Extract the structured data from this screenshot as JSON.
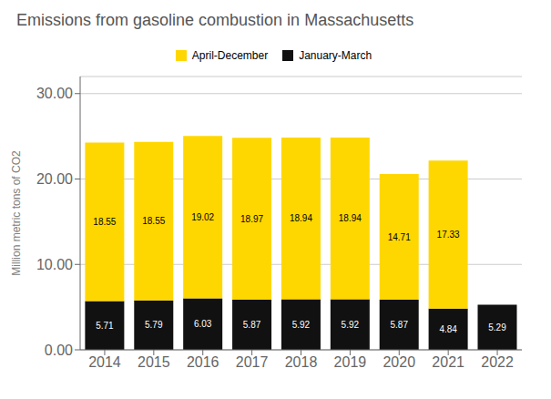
{
  "chart_data": {
    "type": "bar",
    "title": "Emissions from gasoline combustion in Massachusetts",
    "ylabel": "Million metric tons of CO2",
    "categories": [
      "2014",
      "2015",
      "2016",
      "2017",
      "2018",
      "2019",
      "2020",
      "2021",
      "2022"
    ],
    "series": [
      {
        "name": "January-March",
        "color": "#111111",
        "values": [
          5.71,
          5.79,
          6.03,
          5.87,
          5.92,
          5.92,
          5.87,
          4.84,
          5.29
        ]
      },
      {
        "name": "April-December",
        "color": "#FFD700",
        "values": [
          18.55,
          18.55,
          19.02,
          18.97,
          18.94,
          18.94,
          14.71,
          17.33,
          0.0
        ],
        "value_labels": [
          "18.55",
          "18.55",
          "19.02",
          "18.97",
          "18.94",
          "18.94",
          "14.71",
          "17.33",
          null
        ]
      }
    ],
    "stacked": true,
    "data_labels": true,
    "ylim": [
      0,
      32
    ],
    "yticks": [
      {
        "value": 0,
        "label": "0.00"
      },
      {
        "value": 10,
        "label": "10.00"
      },
      {
        "value": 20,
        "label": "20.00"
      },
      {
        "value": 30,
        "label": "30.00"
      }
    ],
    "grid": true,
    "legend": "top"
  }
}
